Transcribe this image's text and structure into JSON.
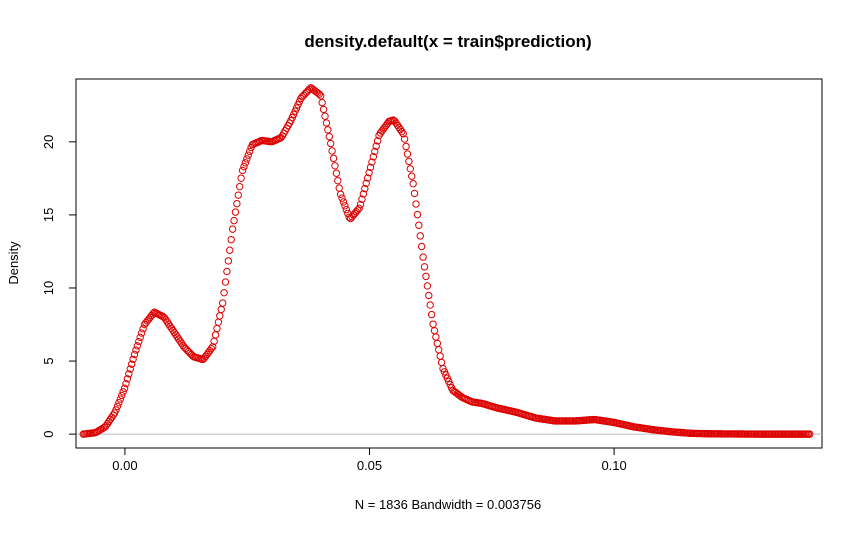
{
  "chart_data": {
    "type": "line",
    "title": "density.default(x = train$prediction)",
    "xlabel": "N = 1836   Bandwidth = 0.003756",
    "ylabel": "Density",
    "xlim": [
      -0.01,
      0.1425
    ],
    "ylim": [
      -0.95,
      24.3
    ],
    "x_ticks": [
      0.0,
      0.05,
      0.1
    ],
    "x_tick_labels": [
      "0.00",
      "0.05",
      "0.10"
    ],
    "y_ticks": [
      0,
      5,
      10,
      15,
      20
    ],
    "y_tick_labels": [
      "0",
      "5",
      "10",
      "15",
      "20"
    ],
    "grid": false,
    "legend": "none",
    "series_color": "#dd0000",
    "zero_line_color": "#bbbbbb",
    "marker": "open-circle",
    "x": [
      -0.0085,
      -0.006,
      -0.004,
      -0.002,
      0.0,
      0.002,
      0.004,
      0.006,
      0.008,
      0.01,
      0.012,
      0.014,
      0.016,
      0.018,
      0.02,
      0.022,
      0.024,
      0.026,
      0.028,
      0.03,
      0.032,
      0.034,
      0.036,
      0.038,
      0.04,
      0.042,
      0.044,
      0.046,
      0.048,
      0.05,
      0.052,
      0.054,
      0.055,
      0.057,
      0.059,
      0.061,
      0.063,
      0.065,
      0.067,
      0.069,
      0.071,
      0.073,
      0.076,
      0.08,
      0.084,
      0.088,
      0.092,
      0.096,
      0.1,
      0.104,
      0.108,
      0.112,
      0.116,
      0.12,
      0.125,
      0.13,
      0.135,
      0.14
    ],
    "y": [
      0.0,
      0.1,
      0.5,
      1.5,
      3.2,
      5.5,
      7.5,
      8.35,
      8.0,
      7.0,
      6.0,
      5.3,
      5.1,
      6.0,
      9.0,
      14.0,
      18.0,
      19.8,
      20.1,
      20.0,
      20.3,
      21.5,
      23.0,
      23.7,
      23.2,
      20.0,
      16.5,
      14.7,
      15.5,
      18.0,
      20.5,
      21.4,
      21.5,
      20.5,
      17.0,
      12.0,
      7.5,
      4.5,
      3.0,
      2.5,
      2.2,
      2.1,
      1.8,
      1.5,
      1.1,
      0.9,
      0.9,
      1.0,
      0.8,
      0.5,
      0.3,
      0.15,
      0.05,
      0.02,
      0.01,
      0.0,
      0.0,
      0.0
    ]
  }
}
